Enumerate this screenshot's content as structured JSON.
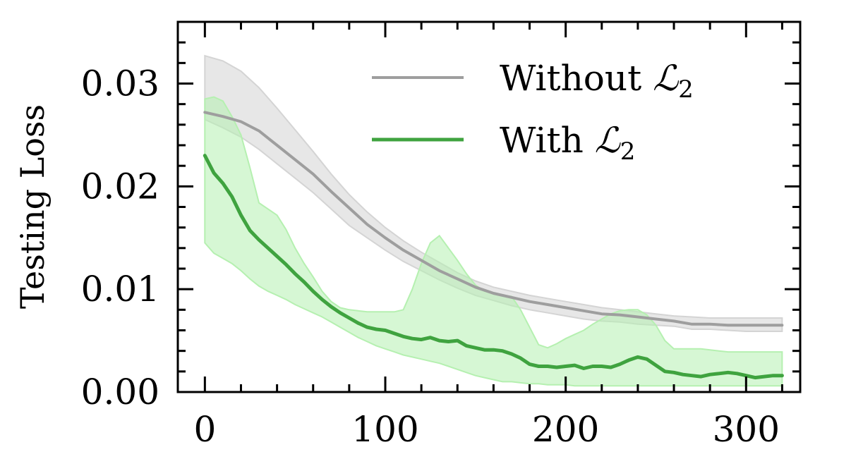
{
  "chart_data": {
    "type": "line",
    "title": "",
    "xlabel": "",
    "ylabel": "Testing Loss",
    "xlim": [
      -15,
      330
    ],
    "ylim": [
      0,
      0.036
    ],
    "xticks": [
      0,
      100,
      200,
      300
    ],
    "xtick_labels": [
      "0",
      "100",
      "200",
      "300"
    ],
    "yticks": [
      0,
      0.01,
      0.02,
      0.03
    ],
    "ytick_labels": [
      "0.00",
      "0.01",
      "0.02",
      "0.03"
    ],
    "legend": {
      "placement": "top-center"
    },
    "series": [
      {
        "name": "Without",
        "name_math": "ℒ",
        "name_sub": "2",
        "color": "#9e9e9e",
        "band_color": "#d4d4d4",
        "x": [
          0,
          10,
          20,
          30,
          40,
          50,
          60,
          70,
          80,
          90,
          100,
          110,
          120,
          130,
          140,
          150,
          160,
          170,
          180,
          190,
          200,
          210,
          220,
          230,
          240,
          250,
          260,
          270,
          280,
          290,
          300,
          320
        ],
        "y": [
          0.0272,
          0.0268,
          0.0263,
          0.0254,
          0.024,
          0.0226,
          0.0212,
          0.0195,
          0.0179,
          0.0163,
          0.015,
          0.0138,
          0.0128,
          0.0118,
          0.011,
          0.0102,
          0.0096,
          0.0092,
          0.0088,
          0.0085,
          0.0082,
          0.0079,
          0.0076,
          0.0075,
          0.0073,
          0.0071,
          0.0069,
          0.0066,
          0.0066,
          0.0065,
          0.0065,
          0.0065
        ],
        "lower": [
          0.0265,
          0.0257,
          0.0248,
          0.0236,
          0.0222,
          0.0208,
          0.0194,
          0.0178,
          0.0162,
          0.015,
          0.0138,
          0.0127,
          0.0118,
          0.0109,
          0.0101,
          0.0094,
          0.0089,
          0.0084,
          0.008,
          0.0077,
          0.0074,
          0.0071,
          0.0069,
          0.0068,
          0.0066,
          0.0065,
          0.0064,
          0.0061,
          0.0061,
          0.006,
          0.0059,
          0.0059
        ],
        "upper": [
          0.0327,
          0.0322,
          0.0312,
          0.0296,
          0.0276,
          0.0255,
          0.0234,
          0.0212,
          0.0192,
          0.0175,
          0.016,
          0.0147,
          0.0136,
          0.0126,
          0.0116,
          0.0108,
          0.0102,
          0.0098,
          0.0094,
          0.0091,
          0.0088,
          0.0085,
          0.0082,
          0.008,
          0.0078,
          0.0076,
          0.0074,
          0.0073,
          0.0072,
          0.0072,
          0.0072,
          0.0072
        ]
      },
      {
        "name": "With",
        "name_math": "ℒ",
        "name_sub": "2",
        "color": "#3fa33f",
        "band_color": "#b5f0b0",
        "x": [
          0,
          5,
          10,
          15,
          20,
          25,
          30,
          35,
          40,
          45,
          50,
          55,
          60,
          65,
          70,
          75,
          80,
          85,
          90,
          95,
          100,
          105,
          110,
          115,
          120,
          125,
          130,
          135,
          140,
          145,
          150,
          155,
          160,
          165,
          170,
          175,
          180,
          185,
          190,
          195,
          200,
          205,
          210,
          215,
          220,
          225,
          230,
          235,
          240,
          245,
          250,
          255,
          260,
          265,
          270,
          275,
          280,
          285,
          290,
          295,
          300,
          305,
          310,
          315,
          320
        ],
        "y": [
          0.023,
          0.0213,
          0.0203,
          0.019,
          0.0172,
          0.0157,
          0.0148,
          0.014,
          0.0132,
          0.0124,
          0.0115,
          0.0107,
          0.0098,
          0.009,
          0.0083,
          0.0077,
          0.0072,
          0.0067,
          0.0063,
          0.0061,
          0.006,
          0.0057,
          0.0054,
          0.0052,
          0.0051,
          0.0053,
          0.005,
          0.0049,
          0.005,
          0.0045,
          0.0043,
          0.0041,
          0.0041,
          0.004,
          0.0037,
          0.0033,
          0.0027,
          0.0025,
          0.0025,
          0.0024,
          0.0025,
          0.0026,
          0.0023,
          0.0025,
          0.0025,
          0.0024,
          0.0027,
          0.0031,
          0.0034,
          0.0032,
          0.0026,
          0.002,
          0.0019,
          0.0017,
          0.0016,
          0.0015,
          0.0017,
          0.0018,
          0.0019,
          0.0018,
          0.0016,
          0.0014,
          0.0015,
          0.0016,
          0.0016
        ],
        "lower": [
          0.0145,
          0.0135,
          0.013,
          0.0125,
          0.0118,
          0.011,
          0.0103,
          0.0098,
          0.0094,
          0.009,
          0.0085,
          0.0081,
          0.0077,
          0.0073,
          0.0068,
          0.0063,
          0.0058,
          0.0053,
          0.0049,
          0.0045,
          0.0042,
          0.0039,
          0.0036,
          0.0034,
          0.0032,
          0.003,
          0.0028,
          0.0025,
          0.0022,
          0.0019,
          0.0016,
          0.0014,
          0.0012,
          0.001,
          0.001,
          0.0009,
          0.0008,
          0.0008,
          0.0007,
          0.0007,
          0.0007,
          0.0006,
          0.0006,
          0.0006,
          0.0006,
          0.0006,
          0.0006,
          0.0006,
          0.0006,
          0.0006,
          0.0006,
          0.0006,
          0.0006,
          0.0006,
          0.0006,
          0.0006,
          0.0006,
          0.0006,
          0.0006,
          0.0006,
          0.0006,
          0.0006,
          0.0006,
          0.0006,
          0.0006
        ],
        "upper": [
          0.0285,
          0.0287,
          0.0283,
          0.0268,
          0.025,
          0.0218,
          0.0184,
          0.0178,
          0.0172,
          0.0158,
          0.014,
          0.0125,
          0.0112,
          0.0098,
          0.0088,
          0.0082,
          0.008,
          0.0079,
          0.0078,
          0.0078,
          0.0078,
          0.0078,
          0.008,
          0.01,
          0.0125,
          0.0145,
          0.0152,
          0.014,
          0.0128,
          0.0115,
          0.0104,
          0.0098,
          0.0096,
          0.0094,
          0.0093,
          0.008,
          0.0063,
          0.0046,
          0.0043,
          0.0047,
          0.0052,
          0.0056,
          0.006,
          0.0066,
          0.0071,
          0.0076,
          0.0079,
          0.008,
          0.008,
          0.0075,
          0.0065,
          0.005,
          0.0042,
          0.0042,
          0.0042,
          0.0042,
          0.0041,
          0.004,
          0.0039,
          0.0039,
          0.0039,
          0.0039,
          0.0039,
          0.0039,
          0.0039
        ]
      }
    ]
  }
}
